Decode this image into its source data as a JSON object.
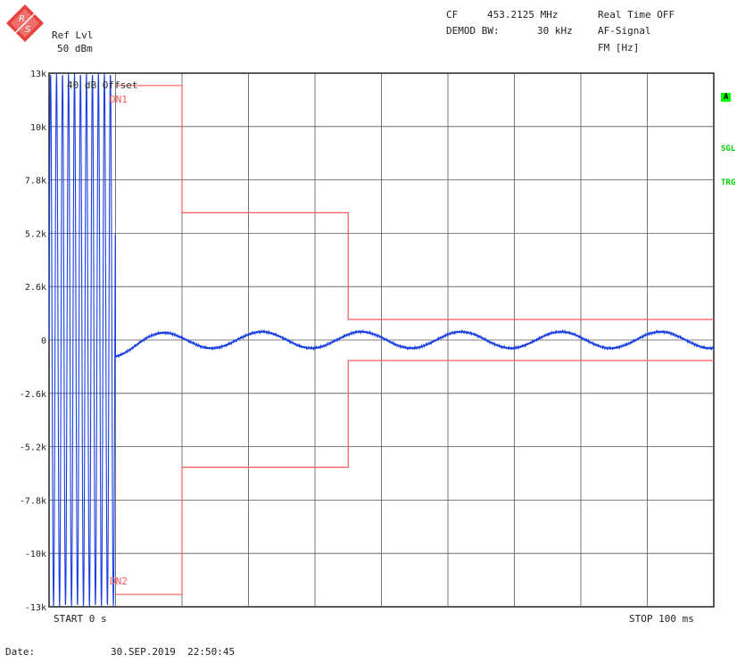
{
  "header": {
    "ref_lvl_label": "Ref Lvl",
    "ref_lvl_value": "50 dBm",
    "cf_label": "CF",
    "cf_value": "453.2125 MHz",
    "real_time": "Real Time OFF",
    "demod_bw_label": "DEMOD BW:",
    "demod_bw_value": "30 kHz",
    "af_signal": "AF-Signal",
    "fm_unit": "FM [Hz]"
  },
  "side_indicators": {
    "a": "A",
    "sgl": "SGL",
    "trg": "TRG"
  },
  "annotations": {
    "offset": "40 dB Offset",
    "dn1": "DN1",
    "dn2": "DN2"
  },
  "footer": {
    "start": "START 0 s",
    "stop": "STOP 100 ms",
    "date_label": "Date:",
    "date_value": "30.SEP.2019  22:50:45"
  },
  "colors": {
    "trace": "#1a3fe0",
    "limit": "#ff5a5a",
    "grid": "#555555",
    "indicator": "#00ff00"
  },
  "chart_data": {
    "type": "line",
    "x_unit": "ms",
    "xlim": [
      0,
      100
    ],
    "ylim": [
      -13000,
      13000
    ],
    "y_ticks": [
      13000,
      10400,
      7800,
      5200,
      2600,
      0,
      -2600,
      -5200,
      -7800,
      -10400,
      -13000
    ],
    "y_tick_labels": [
      "13k",
      "10k",
      "7.8k",
      "5.2k",
      "2.6k",
      "0",
      "-2.6k",
      "-5.2k",
      "-7.8k",
      "-10k",
      "-13k"
    ],
    "x_divisions": 10,
    "grid": true,
    "upper_limit": {
      "name": "DN1",
      "x": [
        10,
        20,
        20,
        45,
        45,
        100
      ],
      "y": [
        12400,
        12400,
        6200,
        6200,
        1000,
        1000
      ]
    },
    "lower_limit": {
      "name": "DN2",
      "x": [
        10,
        20,
        20,
        45,
        45,
        100
      ],
      "y": [
        -12400,
        -12400,
        -6200,
        -6200,
        -1000,
        -1000
      ]
    },
    "trace": {
      "burst_end_ms": 10,
      "burst_amplitude": 13000,
      "settle_start_ms": 10,
      "settle_offset": -800,
      "oscillation_amplitude": 400,
      "oscillation_period_ms": 15,
      "first_peak_ms": 17
    }
  }
}
